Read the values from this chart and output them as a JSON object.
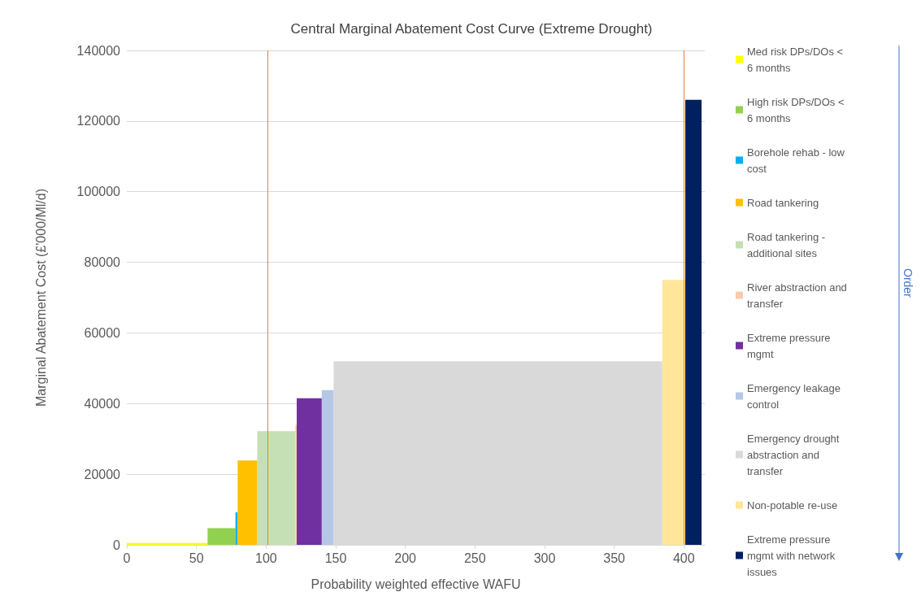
{
  "chart_data": {
    "type": "area",
    "title": "Central Marginal Abatement Cost Curve (Extreme Drought)",
    "xlabel": "Probability weighted effective WAFU",
    "ylabel": "Marginal Abatement Cost (£'000/Ml/d)",
    "xlim": [
      0,
      415
    ],
    "xticks": [
      0,
      50,
      100,
      150,
      200,
      250,
      300,
      350,
      400
    ],
    "ylim": [
      0,
      140000
    ],
    "yticks": [
      0,
      20000,
      40000,
      60000,
      80000,
      100000,
      120000,
      140000
    ],
    "grid": "y",
    "legend": "right",
    "marker": "none",
    "annotations": [
      "Order"
    ],
    "series": [
      {
        "name": "Med risk DPs/DOs < 6 months",
        "color": "#ffff00",
        "x": [
          0,
          58
        ],
        "values": [
          500,
          500
        ]
      },
      {
        "name": "High risk DPs/DOs < 6 months",
        "color": "#92d050",
        "x": [
          58,
          78
        ],
        "values": [
          4700,
          4700
        ]
      },
      {
        "name": "Borehole rehab - low cost",
        "color": "#00b0f0",
        "x": [
          78,
          79.6
        ],
        "values": [
          9200,
          9200
        ]
      },
      {
        "name": "Road tankering",
        "color": "#ffc000",
        "x": [
          79.6,
          93.7
        ],
        "values": [
          23900,
          23900
        ]
      },
      {
        "name": "Road tankering - additional sites",
        "color": "#c5e0b4",
        "x": [
          93.7,
          121
        ],
        "values": [
          32200,
          32200
        ]
      },
      {
        "name": "River abstraction and transfer",
        "color": "#f8cbad",
        "x": [
          121,
          122
        ],
        "values": [
          34000,
          34000
        ]
      },
      {
        "name": "Extreme pressure mgmt",
        "color": "#7030a0",
        "x": [
          122,
          140
        ],
        "values": [
          41500,
          41500
        ]
      },
      {
        "name": "Emergency leakage control",
        "color": "#b4c7e7",
        "x": [
          140,
          148.5
        ],
        "values": [
          43800,
          43800
        ]
      },
      {
        "name": "Emergency drought abstraction and transfer",
        "color": "#d9d9d9",
        "x": [
          148.5,
          384.5
        ],
        "values": [
          52000,
          52000
        ]
      },
      {
        "name": "Non-potable re-use",
        "color": "#ffe699",
        "x": [
          384.5,
          401
        ],
        "values": [
          75000,
          75000
        ]
      },
      {
        "name": "Extreme pressure mgmt with network issues",
        "color": "#002060",
        "x": [
          401,
          412.7
        ],
        "values": [
          126000,
          126000
        ]
      }
    ],
    "ref_lines": [
      {
        "axis": "x",
        "value": 101,
        "color": "#ed7d31"
      },
      {
        "axis": "x",
        "value": 400,
        "color": "#ed7d31"
      }
    ]
  }
}
